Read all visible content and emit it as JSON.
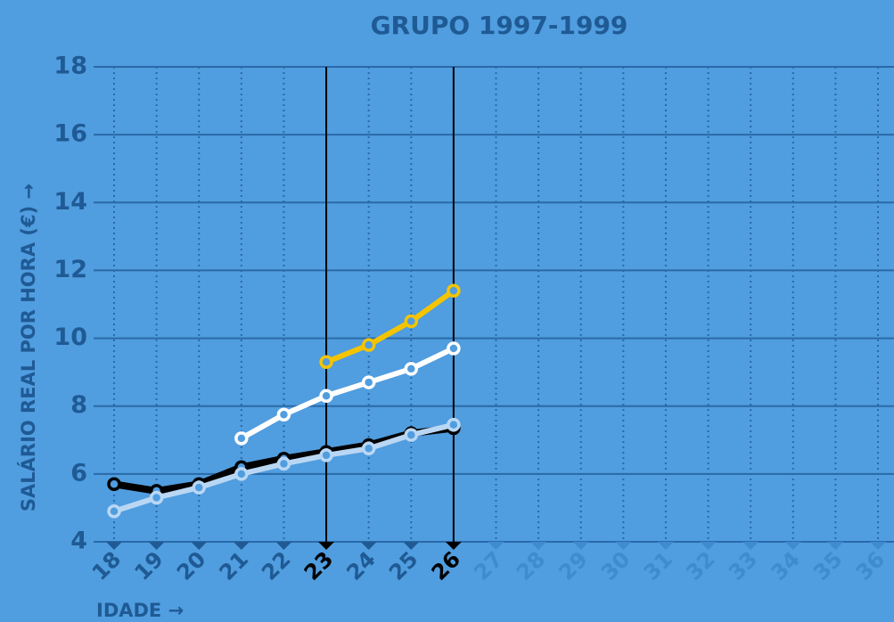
{
  "chart_data": {
    "type": "line",
    "title": "GRUPO 1997-1999",
    "x_label": "IDADE →",
    "y_label": "SALÁRIO REAL POR HORA (€) →",
    "x": [
      18,
      19,
      20,
      21,
      22,
      23,
      24,
      25,
      26,
      27,
      28,
      29,
      30,
      31,
      32,
      33,
      34,
      35,
      36
    ],
    "xlim": [
      18,
      36
    ],
    "xticks": [
      18,
      19,
      20,
      21,
      22,
      23,
      24,
      25,
      26,
      27,
      28,
      29,
      30,
      31,
      32,
      33,
      34,
      35,
      36
    ],
    "ylim": [
      4,
      18
    ],
    "yticks": [
      4,
      6,
      8,
      10,
      12,
      14,
      16,
      18
    ],
    "grid": true,
    "vlines": [
      23,
      26
    ],
    "series": [
      {
        "color": "#000000",
        "values": [
          5.7,
          5.5,
          5.7,
          6.2,
          6.45,
          6.65,
          6.85,
          7.2,
          7.35,
          null,
          null,
          null,
          null,
          null,
          null,
          null,
          null,
          null,
          null
        ]
      },
      {
        "color": "#b9d7f4",
        "values": [
          4.9,
          5.3,
          5.6,
          6.0,
          6.3,
          6.55,
          6.75,
          7.15,
          7.45,
          null,
          null,
          null,
          null,
          null,
          null,
          null,
          null,
          null,
          null
        ]
      },
      {
        "color": "#ffffff",
        "values": [
          null,
          null,
          null,
          7.05,
          7.75,
          8.3,
          8.7,
          9.1,
          9.7,
          null,
          null,
          null,
          null,
          null,
          null,
          null,
          null,
          null,
          null
        ]
      },
      {
        "color": "#f5c400",
        "values": [
          null,
          null,
          null,
          null,
          null,
          9.3,
          9.8,
          10.5,
          11.4,
          null,
          null,
          null,
          null,
          null,
          null,
          null,
          null,
          null,
          null
        ]
      }
    ]
  }
}
